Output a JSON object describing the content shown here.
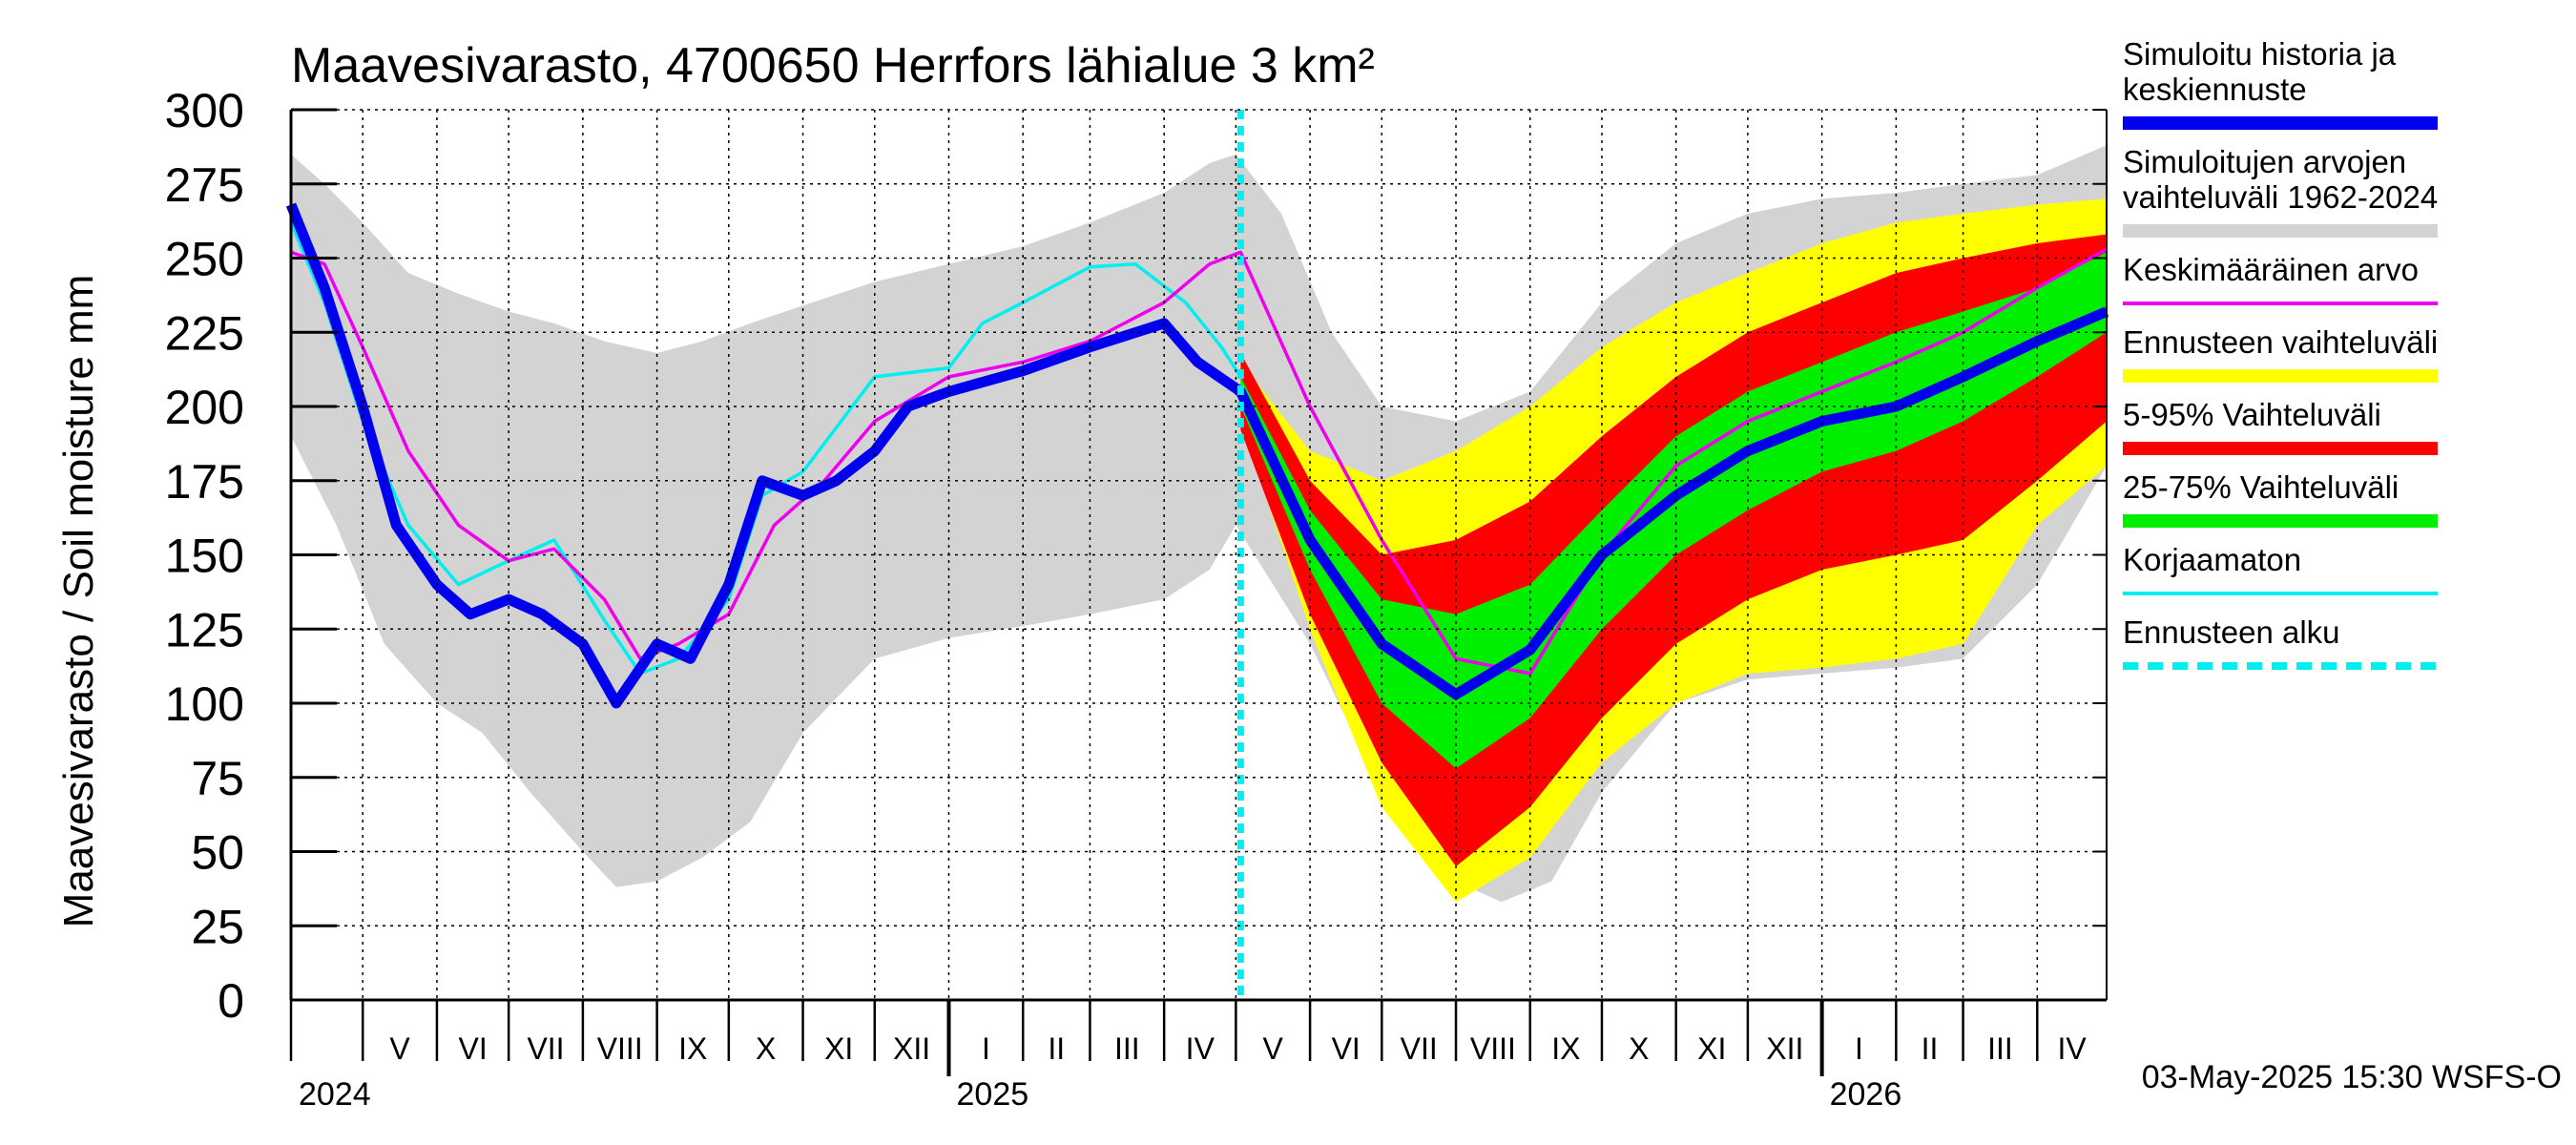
{
  "chart_data": {
    "type": "area",
    "title": "Maavesivarasto, 4700650 Herrfors lähialue 3 km²",
    "ylabel": "Maavesivarasto / Soil moisture   mm",
    "ylim": [
      0,
      300
    ],
    "yticks": [
      0,
      25,
      50,
      75,
      100,
      125,
      150,
      175,
      200,
      225,
      250,
      275,
      300
    ],
    "xlim": [
      "2024-04-01",
      "2026-04-30"
    ],
    "grid": true,
    "legend_position": "right",
    "forecast_start": "2025-05-03",
    "months": [
      "V",
      "VI",
      "VII",
      "VIII",
      "IX",
      "X",
      "XI",
      "XII",
      "I",
      "II",
      "III",
      "IV",
      "V",
      "VI",
      "VII",
      "VIII",
      "IX",
      "X",
      "XI",
      "XII",
      "I",
      "II",
      "III",
      "IV"
    ],
    "years": [
      "2024",
      "2025",
      "2026"
    ],
    "footer": "03-May-2025 15:30 WSFS-O",
    "legend": [
      {
        "label": "Simuloitu historia ja keskiennuste",
        "color": "#0000ee",
        "style": "thick"
      },
      {
        "label": "Simuloitujen arvojen vaihteluväli 1962-2024",
        "color": "#d3d3d3",
        "style": "thick"
      },
      {
        "label": "Keskimääräinen arvo",
        "color": "#ee00ee",
        "style": "thin"
      },
      {
        "label": "Ennusteen vaihteluväli",
        "color": "#ffff00",
        "style": "thick"
      },
      {
        "label": "5-95% Vaihteluväli",
        "color": "#ff0000",
        "style": "thick"
      },
      {
        "label": "25-75% Vaihteluväli",
        "color": "#00ee00",
        "style": "thick"
      },
      {
        "label": "Korjaamaton",
        "color": "#00eeee",
        "style": "thin"
      },
      {
        "label": "Ennusteen alku",
        "color": "#00eeee",
        "style": "dashed"
      }
    ],
    "series": [
      {
        "name": "Simulated range 1962-2024 (upper)",
        "x": [
          "2024-04-01",
          "2024-04-15",
          "2024-05-01",
          "2024-05-20",
          "2024-06-10",
          "2024-07-01",
          "2024-07-20",
          "2024-08-10",
          "2024-09-01",
          "2024-09-20",
          "2024-10-10",
          "2024-11-01",
          "2024-12-01",
          "2025-01-01",
          "2025-02-01",
          "2025-03-01",
          "2025-04-01",
          "2025-04-20",
          "2025-05-01",
          "2025-05-20",
          "2025-06-10",
          "2025-07-01",
          "2025-08-01",
          "2025-09-01",
          "2025-10-01",
          "2025-11-01",
          "2025-12-01",
          "2026-01-01",
          "2026-02-01",
          "2026-03-01",
          "2026-04-01",
          "2026-04-30"
        ],
        "values": [
          285,
          275,
          262,
          245,
          238,
          232,
          228,
          222,
          218,
          222,
          228,
          234,
          242,
          248,
          254,
          262,
          272,
          282,
          285,
          265,
          225,
          200,
          195,
          205,
          235,
          255,
          265,
          270,
          272,
          275,
          278,
          288
        ]
      },
      {
        "name": "Simulated range 1962-2024 (lower)",
        "x": [
          "2024-04-01",
          "2024-04-20",
          "2024-05-10",
          "2024-06-01",
          "2024-06-20",
          "2024-07-10",
          "2024-08-01",
          "2024-08-15",
          "2024-09-01",
          "2024-09-20",
          "2024-10-10",
          "2024-11-01",
          "2024-12-01",
          "2025-01-01",
          "2025-02-01",
          "2025-03-01",
          "2025-04-01",
          "2025-04-20",
          "2025-05-01",
          "2025-06-01",
          "2025-07-01",
          "2025-08-01",
          "2025-08-20",
          "2025-09-10",
          "2025-10-01",
          "2025-11-01",
          "2025-12-01",
          "2026-01-01",
          "2026-02-01",
          "2026-03-01",
          "2026-04-01",
          "2026-04-30"
        ],
        "values": [
          190,
          160,
          120,
          100,
          90,
          70,
          50,
          38,
          40,
          48,
          60,
          90,
          115,
          122,
          126,
          130,
          135,
          145,
          160,
          120,
          70,
          40,
          33,
          40,
          70,
          100,
          108,
          110,
          112,
          115,
          140,
          180
        ]
      },
      {
        "name": "Ennusteen vaihteluväli (upper)",
        "x": [
          "2025-05-03",
          "2025-06-01",
          "2025-07-01",
          "2025-08-01",
          "2025-09-01",
          "2025-10-01",
          "2025-11-01",
          "2025-12-01",
          "2026-01-01",
          "2026-02-01",
          "2026-03-01",
          "2026-04-01",
          "2026-04-30"
        ],
        "values": [
          215,
          185,
          175,
          185,
          200,
          220,
          235,
          245,
          255,
          262,
          265,
          268,
          270
        ]
      },
      {
        "name": "Ennusteen vaihteluväli (lower)",
        "x": [
          "2025-05-03",
          "2025-06-01",
          "2025-07-01",
          "2025-08-01",
          "2025-09-01",
          "2025-10-01",
          "2025-11-01",
          "2025-12-01",
          "2026-01-01",
          "2026-02-01",
          "2026-03-01",
          "2026-04-01",
          "2026-04-30"
        ],
        "values": [
          195,
          125,
          65,
          33,
          48,
          80,
          100,
          110,
          112,
          115,
          120,
          160,
          180
        ]
      },
      {
        "name": "5-95% Vaihteluväli (upper)",
        "x": [
          "2025-05-03",
          "2025-06-01",
          "2025-07-01",
          "2025-08-01",
          "2025-09-01",
          "2025-10-01",
          "2025-11-01",
          "2025-12-01",
          "2026-01-01",
          "2026-02-01",
          "2026-03-01",
          "2026-04-01",
          "2026-04-30"
        ],
        "values": [
          218,
          175,
          150,
          155,
          168,
          190,
          210,
          225,
          235,
          245,
          250,
          255,
          258
        ]
      },
      {
        "name": "5-95% Vaihteluväli (lower)",
        "x": [
          "2025-05-03",
          "2025-06-01",
          "2025-07-01",
          "2025-08-01",
          "2025-09-01",
          "2025-10-01",
          "2025-11-01",
          "2025-12-01",
          "2026-01-01",
          "2026-02-01",
          "2026-03-01",
          "2026-04-01",
          "2026-04-30"
        ],
        "values": [
          192,
          130,
          80,
          45,
          65,
          95,
          120,
          135,
          145,
          150,
          155,
          175,
          195
        ]
      },
      {
        "name": "25-75% Vaihteluväli (upper)",
        "x": [
          "2025-05-03",
          "2025-06-01",
          "2025-07-01",
          "2025-08-01",
          "2025-09-01",
          "2025-10-01",
          "2025-11-01",
          "2025-12-01",
          "2026-01-01",
          "2026-02-01",
          "2026-03-01",
          "2026-04-01",
          "2026-04-30"
        ],
        "values": [
          210,
          165,
          135,
          130,
          140,
          165,
          190,
          205,
          215,
          225,
          232,
          240,
          252
        ]
      },
      {
        "name": "25-75% Vaihteluväli (lower)",
        "x": [
          "2025-05-03",
          "2025-06-01",
          "2025-07-01",
          "2025-08-01",
          "2025-09-01",
          "2025-10-01",
          "2025-11-01",
          "2025-12-01",
          "2026-01-01",
          "2026-02-01",
          "2026-03-01",
          "2026-04-01",
          "2026-04-30"
        ],
        "values": [
          200,
          145,
          100,
          78,
          95,
          125,
          150,
          165,
          178,
          185,
          195,
          210,
          225
        ]
      },
      {
        "name": "Simuloitu historia ja keskiennuste",
        "x": [
          "2024-04-01",
          "2024-04-15",
          "2024-05-01",
          "2024-05-15",
          "2024-06-01",
          "2024-06-15",
          "2024-07-01",
          "2024-07-15",
          "2024-08-01",
          "2024-08-15",
          "2024-09-01",
          "2024-09-15",
          "2024-10-01",
          "2024-10-15",
          "2024-11-01",
          "2024-11-15",
          "2024-12-01",
          "2024-12-15",
          "2025-01-01",
          "2025-02-01",
          "2025-03-01",
          "2025-04-01",
          "2025-04-15",
          "2025-05-03",
          "2025-06-01",
          "2025-07-01",
          "2025-08-01",
          "2025-09-01",
          "2025-10-01",
          "2025-11-01",
          "2025-12-01",
          "2026-01-01",
          "2026-02-01",
          "2026-03-01",
          "2026-04-01",
          "2026-04-30"
        ],
        "values": [
          268,
          240,
          200,
          160,
          140,
          130,
          135,
          130,
          120,
          100,
          120,
          115,
          140,
          175,
          170,
          175,
          185,
          200,
          205,
          212,
          220,
          228,
          215,
          205,
          155,
          120,
          103,
          118,
          150,
          170,
          185,
          195,
          200,
          210,
          222,
          232
        ]
      },
      {
        "name": "Keskimääräinen arvo",
        "x": [
          "2024-04-01",
          "2024-04-15",
          "2024-05-01",
          "2024-05-20",
          "2024-06-10",
          "2024-07-01",
          "2024-07-20",
          "2024-08-10",
          "2024-08-25",
          "2024-09-10",
          "2024-10-01",
          "2024-10-20",
          "2024-11-10",
          "2024-12-01",
          "2025-01-01",
          "2025-02-01",
          "2025-03-01",
          "2025-04-01",
          "2025-04-20",
          "2025-05-03",
          "2025-06-01",
          "2025-07-01",
          "2025-08-01",
          "2025-09-01",
          "2025-10-01",
          "2025-11-01",
          "2025-12-01",
          "2026-01-01",
          "2026-02-01",
          "2026-03-01",
          "2026-04-01",
          "2026-04-30"
        ],
        "values": [
          252,
          248,
          220,
          185,
          160,
          148,
          152,
          135,
          115,
          120,
          130,
          160,
          175,
          195,
          210,
          215,
          222,
          235,
          248,
          252,
          200,
          155,
          115,
          110,
          150,
          180,
          195,
          205,
          215,
          225,
          240,
          253
        ]
      },
      {
        "name": "Korjaamaton",
        "x": [
          "2024-04-01",
          "2024-04-15",
          "2024-05-01",
          "2024-05-20",
          "2024-06-10",
          "2024-07-01",
          "2024-07-20",
          "2024-08-10",
          "2024-08-25",
          "2024-09-10",
          "2024-10-01",
          "2024-10-15",
          "2024-11-01",
          "2024-12-01",
          "2025-01-01",
          "2025-01-15",
          "2025-02-01",
          "2025-03-01",
          "2025-03-20",
          "2025-04-10",
          "2025-04-25",
          "2025-05-03"
        ],
        "values": [
          262,
          235,
          195,
          160,
          140,
          148,
          155,
          128,
          110,
          115,
          135,
          170,
          178,
          210,
          213,
          228,
          235,
          247,
          248,
          235,
          220,
          210
        ]
      }
    ]
  }
}
